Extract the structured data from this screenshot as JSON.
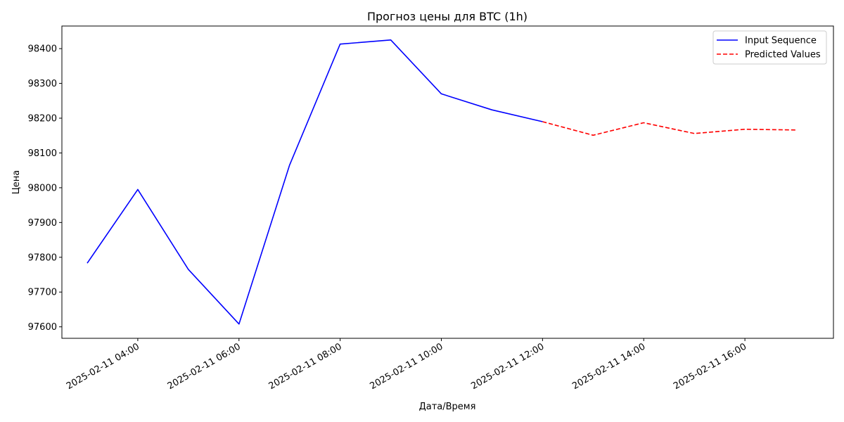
{
  "chart_data": {
    "type": "line",
    "title": "Прогноз цены для BTC (1h)",
    "xlabel": "Дата/Время",
    "ylabel": "Цена",
    "x_ticks": [
      "2025-02-11 04:00",
      "2025-02-11 06:00",
      "2025-02-11 08:00",
      "2025-02-11 10:00",
      "2025-02-11 12:00",
      "2025-02-11 14:00",
      "2025-02-11 16:00"
    ],
    "y_ticks": [
      97600,
      97700,
      97800,
      97900,
      98000,
      98100,
      98200,
      98300,
      98400
    ],
    "xlim": [
      "2025-02-11 02:30",
      "2025-02-11 17:45"
    ],
    "ylim": [
      97567,
      98465
    ],
    "grid": false,
    "legend_position": "top-right",
    "series": [
      {
        "name": "Input Sequence",
        "color": "#0000ff",
        "style": "solid",
        "points": [
          {
            "x": "2025-02-11 03:00",
            "y": 97783
          },
          {
            "x": "2025-02-11 04:00",
            "y": 97995
          },
          {
            "x": "2025-02-11 05:00",
            "y": 97765
          },
          {
            "x": "2025-02-11 06:00",
            "y": 97608
          },
          {
            "x": "2025-02-11 07:00",
            "y": 98065
          },
          {
            "x": "2025-02-11 08:00",
            "y": 98413
          },
          {
            "x": "2025-02-11 09:00",
            "y": 98425
          },
          {
            "x": "2025-02-11 10:00",
            "y": 98270
          },
          {
            "x": "2025-02-11 11:00",
            "y": 98224
          },
          {
            "x": "2025-02-11 12:00",
            "y": 98190
          }
        ]
      },
      {
        "name": "Predicted Values",
        "color": "#ff0000",
        "style": "dashed",
        "points": [
          {
            "x": "2025-02-11 12:00",
            "y": 98190
          },
          {
            "x": "2025-02-11 13:00",
            "y": 98151
          },
          {
            "x": "2025-02-11 14:00",
            "y": 98187
          },
          {
            "x": "2025-02-11 15:00",
            "y": 98156
          },
          {
            "x": "2025-02-11 16:00",
            "y": 98168
          },
          {
            "x": "2025-02-11 17:00",
            "y": 98166
          }
        ]
      }
    ]
  }
}
